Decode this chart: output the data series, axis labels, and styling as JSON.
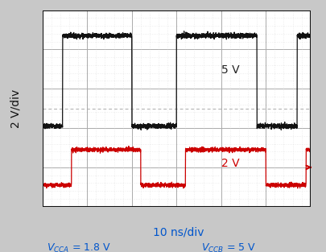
{
  "ylabel": "2 V/div",
  "xlabel_main": "10 ns/div",
  "label_color": "#0055cc",
  "outer_bg": "#c8c8c8",
  "plot_bg": "#ffffff",
  "grid_major_color": "#aaaaaa",
  "grid_minor_color": "#cccccc",
  "border_color": "#111111",
  "signal1_color": "#111111",
  "signal2_color": "#cc0000",
  "signal1_label": "5 V",
  "signal2_label": "2 V",
  "arrow_color": "#cc0000",
  "x_range": [
    0,
    60
  ],
  "y_range": [
    0,
    10
  ],
  "signal1_y_low": 4.1,
  "signal1_y_high": 8.7,
  "signal2_y_low": 1.1,
  "signal2_y_high": 2.9,
  "edges1": [
    4.5,
    20,
    30,
    48,
    57
  ],
  "edges2": [
    6.5,
    22,
    32,
    50,
    59
  ],
  "noise1_amp": 0.06,
  "noise2_amp": 0.05,
  "vcca_label": "$V_{CCA}$ = 1.8 V",
  "vccb_label": "$V_{CCB}$ = 5 V"
}
